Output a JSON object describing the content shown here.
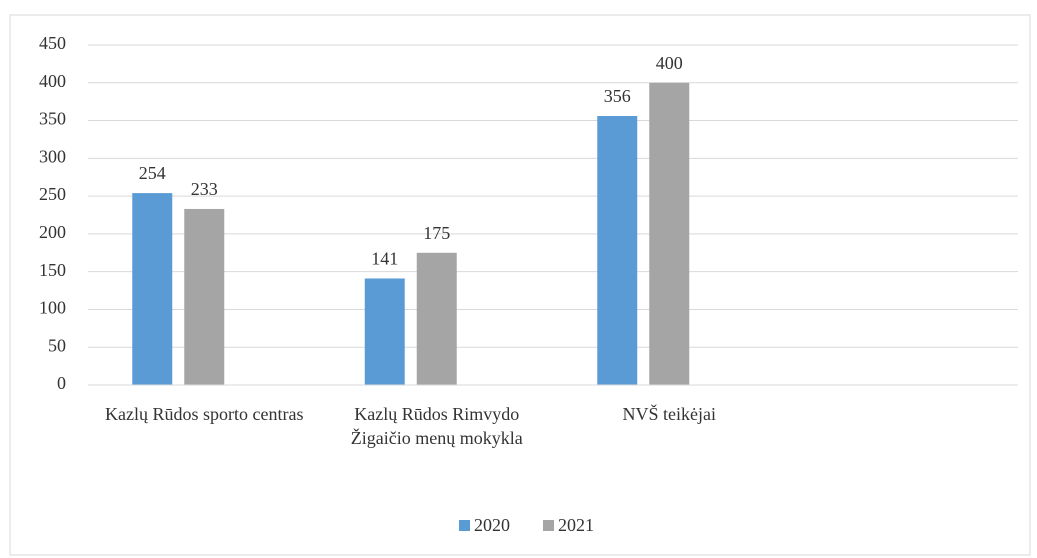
{
  "chart_data": {
    "type": "bar",
    "categories": [
      "Kazlų Rūdos sporto centras",
      "Kazlų Rūdos Rimvydo Žigaičio menų mokykla",
      "NVŠ teikėjai",
      null
    ],
    "series": [
      {
        "name": "2020",
        "color": "#5b9bd5",
        "values": [
          254,
          141,
          356,
          null
        ]
      },
      {
        "name": "2021",
        "color": "#a5a5a5",
        "values": [
          233,
          175,
          400,
          null
        ]
      }
    ],
    "ylim": [
      0,
      450
    ],
    "yticks": [
      0,
      50,
      100,
      150,
      200,
      250,
      300,
      350,
      400,
      450
    ],
    "grid": true,
    "legend": "bottom"
  }
}
